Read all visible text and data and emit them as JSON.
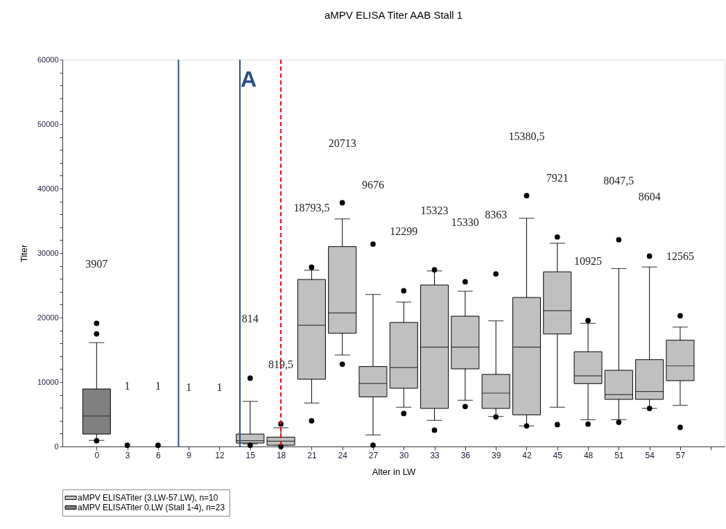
{
  "chart_data": {
    "type": "box",
    "title": "aMPV ELISA Titer AAB Stall 1",
    "xlabel": "Alter in LW",
    "ylabel": "Titer",
    "xlim": [
      -3,
      61
    ],
    "xticks": [
      0,
      3,
      6,
      9,
      12,
      15,
      18,
      21,
      24,
      27,
      30,
      33,
      36,
      39,
      42,
      45,
      48,
      51,
      54,
      57,
      {
        "value": 60,
        "label": null
      }
    ],
    "ylim": [
      0,
      60000
    ],
    "yticks": [
      0,
      {
        "value": 2000,
        "label": null
      },
      {
        "value": 4000,
        "label": null
      },
      {
        "value": 6000,
        "label": null
      },
      {
        "value": 8000,
        "label": null
      },
      10000,
      {
        "value": 12000,
        "label": null
      },
      {
        "value": 14000,
        "label": null
      },
      {
        "value": 16000,
        "label": null
      },
      {
        "value": 18000,
        "label": null
      },
      20000,
      {
        "value": 22000,
        "label": null
      },
      {
        "value": 24000,
        "label": null
      },
      {
        "value": 26000,
        "label": null
      },
      {
        "value": 28000,
        "label": null
      },
      30000,
      {
        "value": 32000,
        "label": null
      },
      {
        "value": 34000,
        "label": null
      },
      {
        "value": 36000,
        "label": null
      },
      {
        "value": 38000,
        "label": null
      },
      40000,
      {
        "value": 42000,
        "label": null
      },
      {
        "value": 44000,
        "label": null
      },
      {
        "value": 46000,
        "label": null
      },
      {
        "value": 48000,
        "label": null
      },
      50000,
      {
        "value": 52000,
        "label": null
      },
      {
        "value": 54000,
        "label": null
      },
      {
        "value": 56000,
        "label": null
      },
      {
        "value": 58000,
        "label": null
      },
      60000
    ],
    "grid": false,
    "legend": "bottom left",
    "series": [
      {
        "name": "aMPV ELISATiter (3.LW-57.LW), n=10",
        "color": "#c0c0c0",
        "x": [
          15,
          18,
          21,
          24,
          27,
          30,
          33,
          36,
          39,
          42,
          45,
          48,
          51,
          54,
          57
        ],
        "boxes": [
          {
            "low": 400,
            "q1": 530,
            "median": 900,
            "q3": 1930,
            "high": 7000,
            "outliers": [
              10600,
              200
            ]
          },
          {
            "low": 200,
            "q1": 200,
            "median": 820,
            "q3": 1440,
            "high": 2900,
            "outliers": [
              3500,
              0
            ]
          },
          {
            "low": 6740,
            "q1": 10430,
            "median": 18810,
            "q3": 25900,
            "high": 27340,
            "outliers": [
              27800,
              3980
            ]
          },
          {
            "low": 14190,
            "q1": 17560,
            "median": 20710,
            "q3": 31000,
            "high": 35300,
            "outliers": [
              37800,
              12760
            ]
          },
          {
            "low": 1790,
            "q1": 7700,
            "median": 9780,
            "q3": 12400,
            "high": 23580,
            "outliers": [
              31390,
              215
            ]
          },
          {
            "low": 6090,
            "q1": 9030,
            "median": 12250,
            "q3": 19240,
            "high": 22400,
            "outliers": [
              24150,
              5120
            ]
          },
          {
            "low": 4050,
            "q1": 5910,
            "median": 15410,
            "q3": 25050,
            "high": 27230,
            "outliers": [
              27400,
              2540
            ]
          },
          {
            "low": 7170,
            "q1": 12040,
            "median": 15410,
            "q3": 20210,
            "high": 24080,
            "outliers": [
              25550,
              6200
            ]
          },
          {
            "low": 4660,
            "q1": 5910,
            "median": 8280,
            "q3": 11180,
            "high": 19490,
            "outliers": [
              26770,
              4590
            ]
          },
          {
            "low": 3190,
            "q1": 4910,
            "median": 15410,
            "q3": 23110,
            "high": 35400,
            "outliers": [
              38910,
              3190
            ]
          },
          {
            "low": 6090,
            "q1": 17450,
            "median": 21070,
            "q3": 27090,
            "high": 31530,
            "outliers": [
              32500,
              3400
            ]
          },
          {
            "low": 4160,
            "q1": 9750,
            "median": 10960,
            "q3": 14690,
            "high": 19100,
            "outliers": [
              19530,
              3480
            ]
          },
          {
            "low": 4160,
            "q1": 7310,
            "median": 8060,
            "q3": 11820,
            "high": 27590,
            "outliers": [
              32070,
              3760
            ]
          },
          {
            "low": 5910,
            "q1": 7310,
            "median": 8530,
            "q3": 13470,
            "high": 27840,
            "outliers": [
              29520,
              5910
            ]
          },
          {
            "low": 6380,
            "q1": 10210,
            "median": 12500,
            "q3": 16480,
            "high": 18520,
            "outliers": [
              20280,
              2970
            ]
          }
        ]
      },
      {
        "name": "aMPV ELISATiter 0.LW (Stall 1-4), n=23",
        "color": "#808080",
        "x": [
          0
        ],
        "boxes": [
          {
            "low": 945,
            "q1": 1930,
            "median": 4730,
            "q3": 8920,
            "high": 16100,
            "outliers": [
              19100,
              17470,
              900
            ]
          }
        ]
      },
      {
        "type": "scatter",
        "color": "#000000",
        "x": [
          3,
          6
        ],
        "values": [
          200,
          200
        ]
      }
    ],
    "ref_lines": [
      {
        "axis": "x",
        "value": 8,
        "color": "#2b4f8a",
        "line_style": "solid"
      },
      {
        "axis": "x",
        "value": 14,
        "label": "A",
        "color": "#2b4f8a",
        "line_style": "solid"
      },
      {
        "axis": "x",
        "value": 18,
        "color": "#ff0000",
        "line_style": "dashed"
      }
    ],
    "annotations": [
      "3907",
      "1",
      "1",
      "1",
      "1",
      "814",
      "819,5",
      "18793,5",
      "20713",
      "9676",
      "12299",
      "15323",
      "15330",
      "8363",
      "15380,5",
      "7921",
      "10925",
      "8047,5",
      "8604",
      "12565"
    ]
  }
}
